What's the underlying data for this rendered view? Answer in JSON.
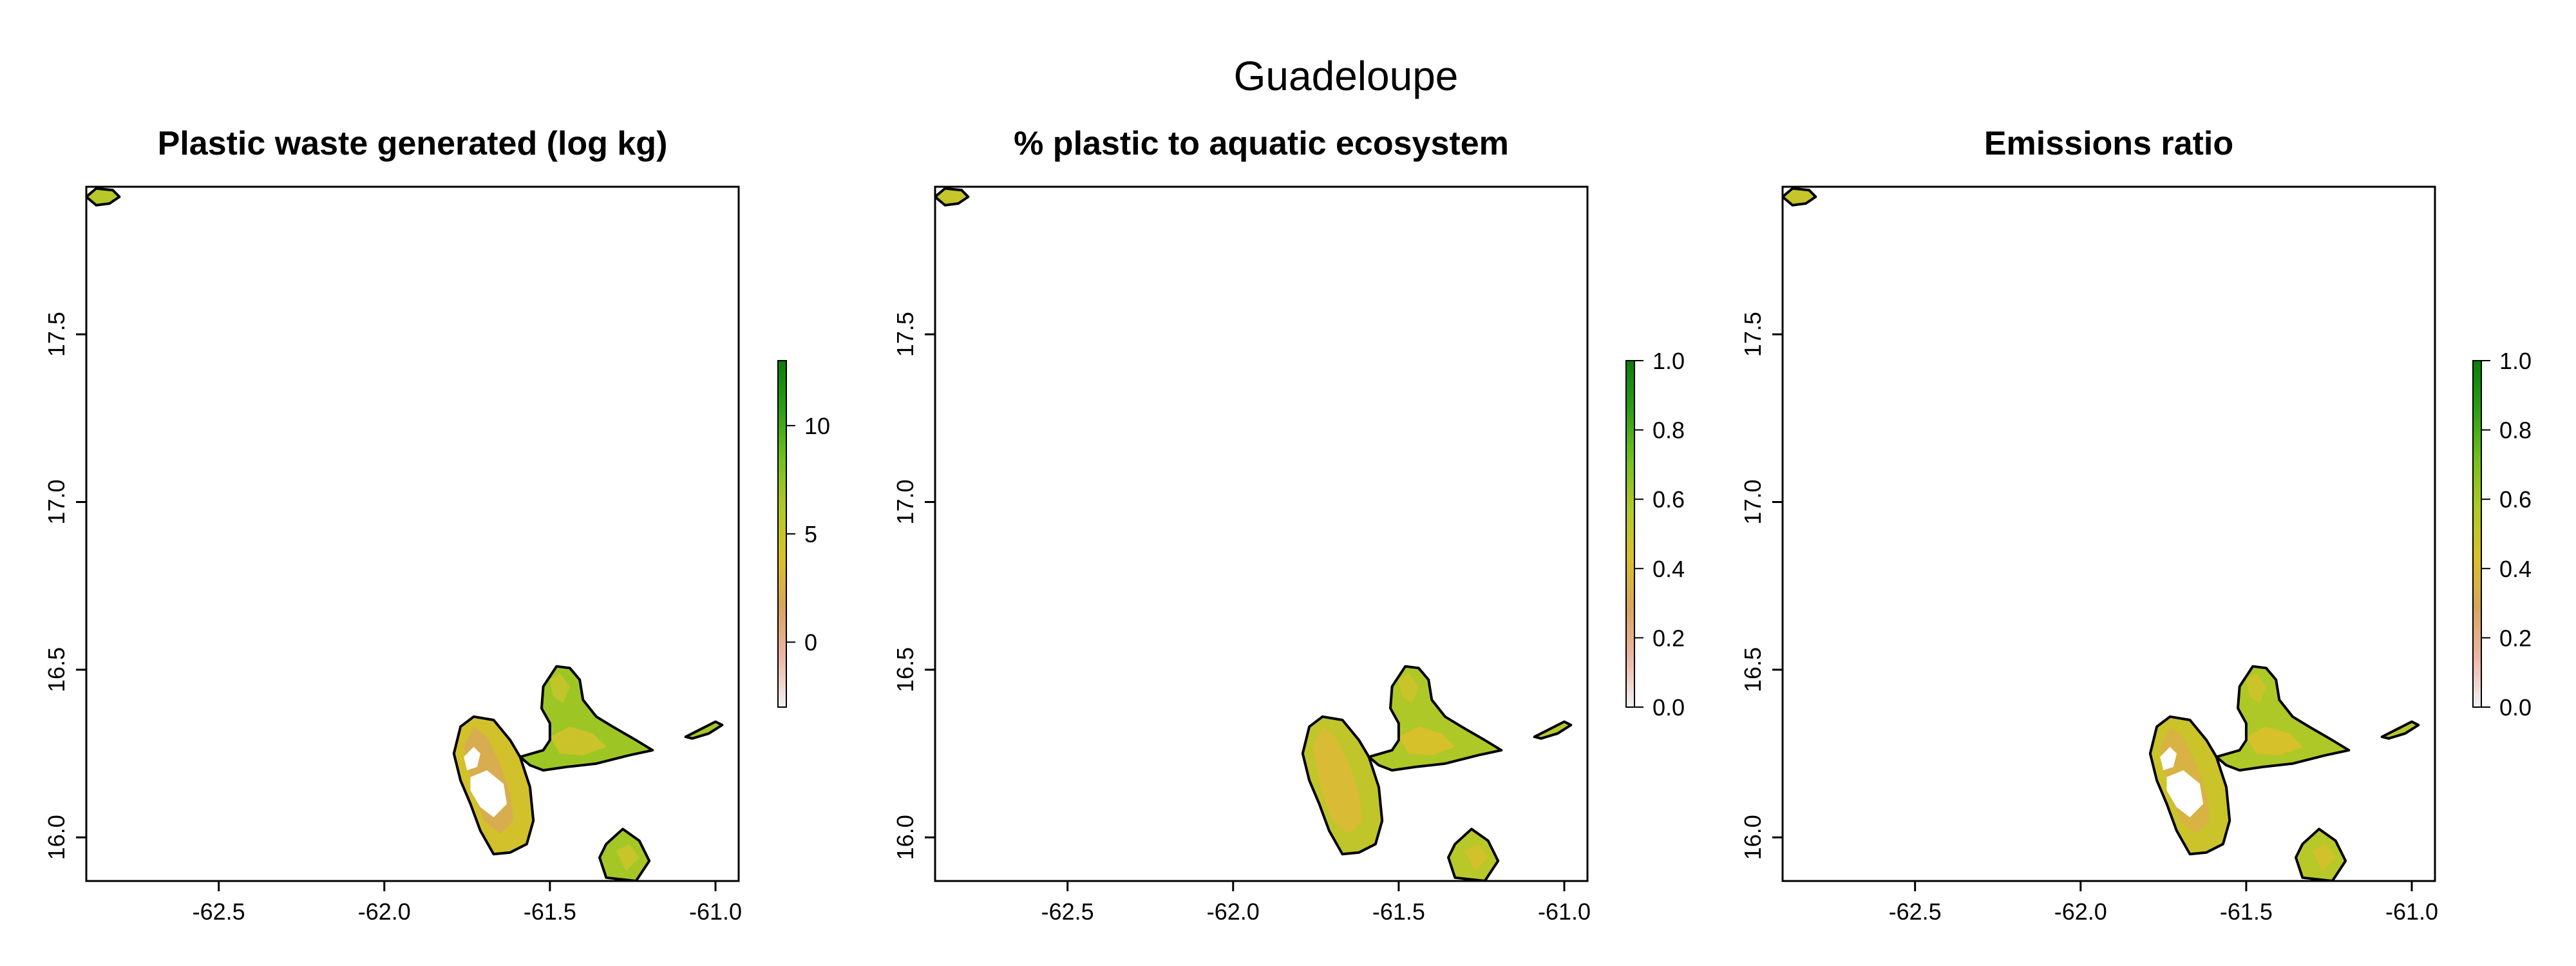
{
  "figure_title": "Guadeloupe",
  "colors": {
    "ramp": [
      "#f2f2f2",
      "#ecb7a6",
      "#d7a55f",
      "#d9c02b",
      "#b2c928",
      "#73c01f",
      "#2e9e17",
      "#0a7d0a"
    ],
    "frame": "#000000",
    "missing": "#ffffff"
  },
  "panels": [
    {
      "title": "Plastic waste generated (log kg)",
      "x_ticks": [
        "-62.5",
        "-62.0",
        "-61.5",
        "-61.0"
      ],
      "y_ticks": [
        "16.0",
        "16.5",
        "17.0",
        "17.5"
      ],
      "legend_ticks": [
        "0",
        "5",
        "10"
      ],
      "legend_values": [
        0,
        5,
        10
      ],
      "legend_range": [
        -3,
        13
      ],
      "fill_levels": {
        "basse_terre": 0.45,
        "grande_terre": 0.62,
        "marie_galante": 0.6,
        "la_desirade": 0.6,
        "montserrat": 0.55
      },
      "missing_patches": true
    },
    {
      "title": "% plastic to aquatic ecosystem",
      "x_ticks": [
        "-62.5",
        "-62.0",
        "-61.5",
        "-61.0"
      ],
      "y_ticks": [
        "16.0",
        "16.5",
        "17.0",
        "17.5"
      ],
      "legend_ticks": [
        "0.0",
        "0.2",
        "0.4",
        "0.6",
        "0.8",
        "1.0"
      ],
      "legend_values": [
        0.0,
        0.2,
        0.4,
        0.6,
        0.8,
        1.0
      ],
      "legend_range": [
        0,
        1
      ],
      "fill_levels": {
        "basse_terre": 0.52,
        "grande_terre": 0.58,
        "marie_galante": 0.55,
        "la_desirade": 0.55,
        "montserrat": 0.5
      },
      "missing_patches": false
    },
    {
      "title": "Emissions ratio",
      "x_ticks": [
        "-62.5",
        "-62.0",
        "-61.5",
        "-61.0"
      ],
      "y_ticks": [
        "16.0",
        "16.5",
        "17.0",
        "17.5"
      ],
      "legend_ticks": [
        "0.0",
        "0.2",
        "0.4",
        "0.6",
        "0.8",
        "1.0"
      ],
      "legend_values": [
        0.0,
        0.2,
        0.4,
        0.6,
        0.8,
        1.0
      ],
      "legend_range": [
        0,
        1
      ],
      "fill_levels": {
        "basse_terre": 0.48,
        "grande_terre": 0.58,
        "marie_galante": 0.55,
        "la_desirade": 0.55,
        "montserrat": 0.5
      },
      "missing_patches": true
    }
  ],
  "map_extent": {
    "lon": [
      -62.9,
      -60.93
    ],
    "lat": [
      15.87,
      17.94
    ]
  },
  "chart_data": {
    "type": "heatmap",
    "title": "Guadeloupe",
    "panels": [
      {
        "title": "Plastic waste generated (log kg)",
        "legend_range": [
          -3,
          13
        ]
      },
      {
        "title": "% plastic to aquatic ecosystem",
        "legend_range": [
          0,
          1
        ]
      },
      {
        "title": "Emissions ratio",
        "legend_range": [
          0,
          1
        ]
      }
    ],
    "xlim": [
      -62.9,
      -60.93
    ],
    "ylim": [
      15.87,
      17.94
    ],
    "x_ticks": [
      -62.5,
      -62.0,
      -61.5,
      -61.0
    ],
    "y_ticks": [
      16.0,
      16.5,
      17.0,
      17.5
    ],
    "grid": false
  }
}
